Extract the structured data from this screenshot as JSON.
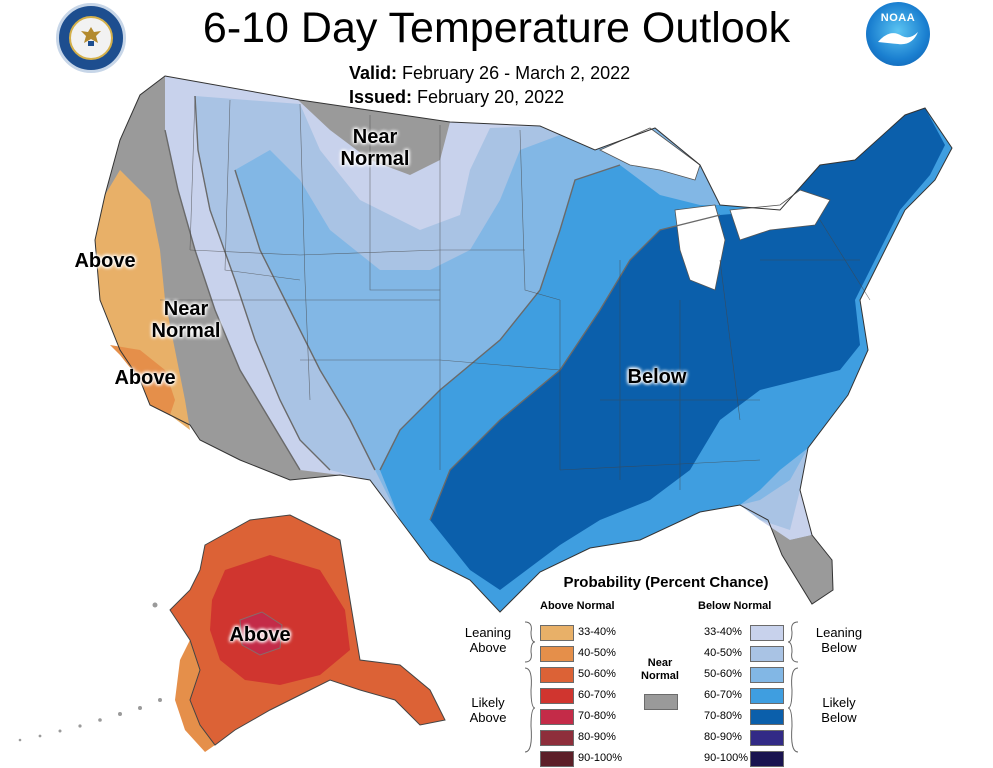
{
  "header": {
    "title": "6-10 Day Temperature Outlook",
    "valid_label": "Valid:",
    "valid_value": "February 26 - March 2, 2022",
    "issued_label": "Issued:",
    "issued_value": "February 20, 2022"
  },
  "logos": {
    "left": "department-of-commerce-seal",
    "right": "noaa-logo",
    "noaa_text": "NOAA"
  },
  "map_labels": {
    "near_normal_north": [
      "Near",
      "Normal"
    ],
    "above_west": "Above",
    "near_normal_west": [
      "Near",
      "Normal"
    ],
    "above_southwest": "Above",
    "below_east": "Below",
    "above_alaska": "Above"
  },
  "legend": {
    "title": "Probability (Percent Chance)",
    "above_header": "Above Normal",
    "below_header": "Below Normal",
    "near_normal": [
      "Near",
      "Normal"
    ],
    "leaning_above": [
      "Leaning",
      "Above"
    ],
    "likely_above": [
      "Likely",
      "Above"
    ],
    "leaning_below": [
      "Leaning",
      "Below"
    ],
    "likely_below": [
      "Likely",
      "Below"
    ],
    "above_bins": [
      {
        "label": "33-40%",
        "color": "#e8b068"
      },
      {
        "label": "40-50%",
        "color": "#e58f4a"
      },
      {
        "label": "50-60%",
        "color": "#dc6236"
      },
      {
        "label": "60-70%",
        "color": "#d0352f"
      },
      {
        "label": "70-80%",
        "color": "#c42b48"
      },
      {
        "label": "80-90%",
        "color": "#8e2e3b"
      },
      {
        "label": "90-100%",
        "color": "#5c1f28"
      }
    ],
    "below_bins": [
      {
        "label": "33-40%",
        "color": "#c8d2ec"
      },
      {
        "label": "40-50%",
        "color": "#a9c3e4"
      },
      {
        "label": "50-60%",
        "color": "#82b7e5"
      },
      {
        "label": "60-70%",
        "color": "#3f9ee0"
      },
      {
        "label": "70-80%",
        "color": "#0b5fab"
      },
      {
        "label": "80-90%",
        "color": "#322a86"
      },
      {
        "label": "90-100%",
        "color": "#1a1450"
      }
    ],
    "near_normal_color": "#9a9a9a"
  },
  "colors": {
    "near_normal_gray": "#9a9a9a",
    "boundary": "#555555"
  }
}
